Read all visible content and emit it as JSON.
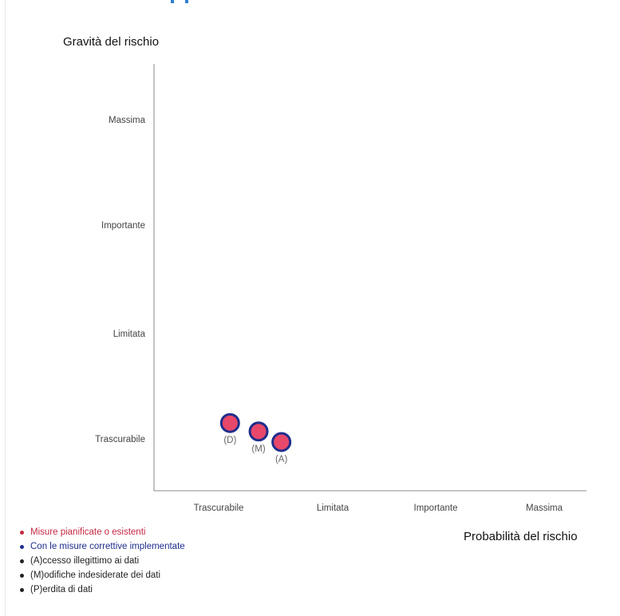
{
  "chart_data": {
    "type": "scatter",
    "ylabel": "Gravità del rischio",
    "xlabel": "Probabilità del rischio",
    "y_categories": [
      "Trascurabile",
      "Limitata",
      "Importante",
      "Massima"
    ],
    "x_categories": [
      "Trascurabile",
      "Limitata",
      "Importante",
      "Massima"
    ],
    "grid": false,
    "points": [
      {
        "label": "(D)",
        "x": 1.1,
        "y": 1.15
      },
      {
        "label": "(M)",
        "x": 1.35,
        "y": 1.07
      },
      {
        "label": "(A)",
        "x": 1.55,
        "y": 0.97
      }
    ],
    "point_fill": "#e8486a",
    "point_stroke": "#1f2e8c",
    "point_label_color": "#666666",
    "legend_position": "bottom-left"
  },
  "legend": {
    "items": [
      {
        "text": "Misure pianificate o esistenti",
        "style": "planned"
      },
      {
        "text": "Con le misure correttive implementate",
        "style": "corrective"
      },
      {
        "text": "(A)ccesso illegittimo ai dati",
        "style": "plain"
      },
      {
        "text": "(M)odifiche indesiderate dei dati",
        "style": "plain"
      },
      {
        "text": "(P)erdita di dati",
        "style": "plain"
      }
    ]
  },
  "colors": {
    "planned": "#c62842",
    "corrective": "#1f2e8c",
    "axis": "#888888",
    "tick_text": "#444444",
    "heading_fragment": "#2f7fd0"
  }
}
